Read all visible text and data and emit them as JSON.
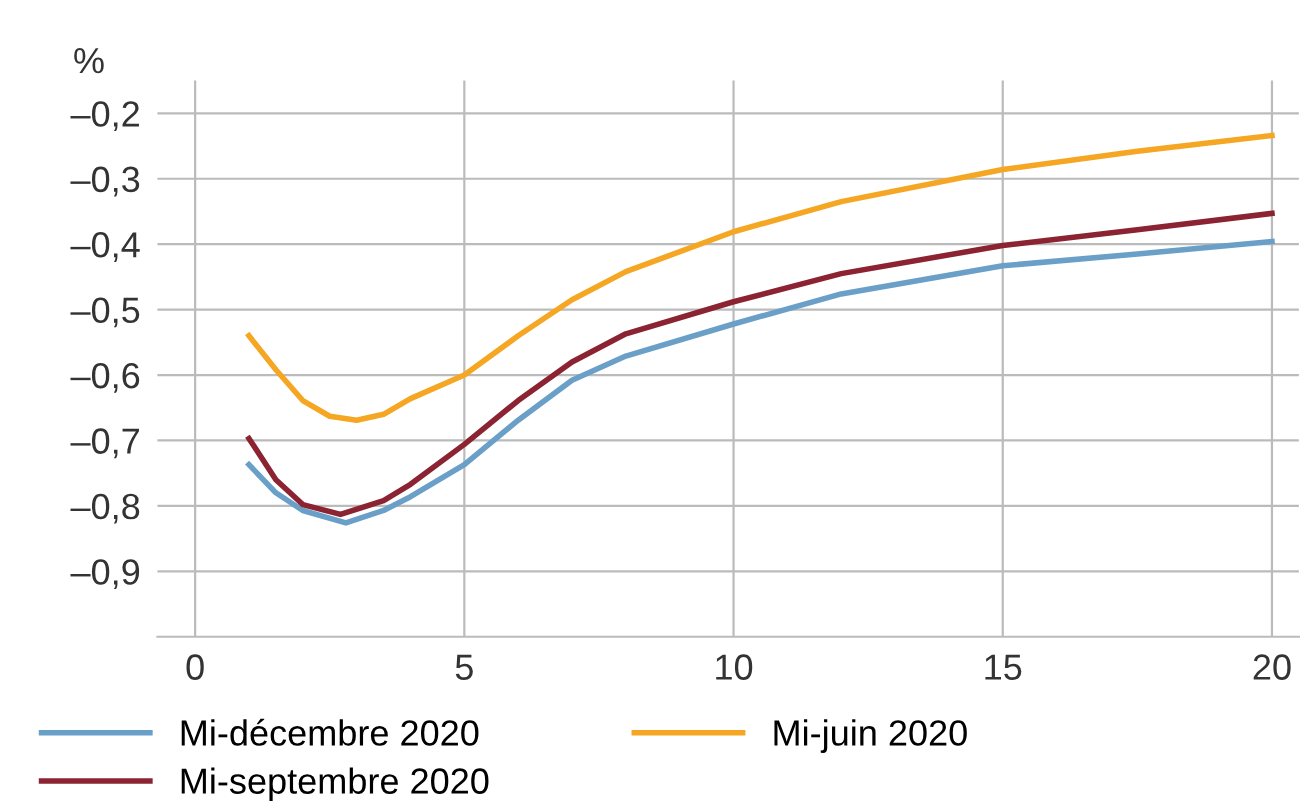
{
  "chart_data": {
    "type": "line",
    "ylabel": "%",
    "series": [
      {
        "name": "Mi-décembre 2020",
        "color": "#6a9fc8",
        "x": [
          1,
          1.5,
          2,
          2.8,
          3.5,
          4,
          5,
          6,
          7,
          8,
          10,
          12,
          15,
          17.5,
          20
        ],
        "values": [
          -0.737,
          -0.78,
          -0.807,
          -0.826,
          -0.807,
          -0.786,
          -0.737,
          -0.669,
          -0.608,
          -0.571,
          -0.522,
          -0.476,
          -0.433,
          -0.415,
          -0.396
        ]
      },
      {
        "name": "Mi-septembre 2020",
        "color": "#8b2332",
        "x": [
          1,
          1.5,
          2,
          2.7,
          3.5,
          4,
          5,
          6,
          7,
          8,
          10,
          12,
          15,
          17.5,
          20
        ],
        "values": [
          -0.697,
          -0.76,
          -0.798,
          -0.813,
          -0.792,
          -0.767,
          -0.706,
          -0.639,
          -0.58,
          -0.537,
          -0.488,
          -0.445,
          -0.402,
          -0.378,
          -0.353
        ]
      },
      {
        "name": "Mi-juin 2020",
        "color": "#f5a623",
        "x": [
          1,
          1.5,
          2,
          2.5,
          3,
          3.5,
          4,
          5,
          6,
          7,
          8,
          10,
          12,
          15,
          17.5,
          20
        ],
        "values": [
          -0.54,
          -0.592,
          -0.639,
          -0.663,
          -0.669,
          -0.66,
          -0.636,
          -0.6,
          -0.54,
          -0.485,
          -0.442,
          -0.381,
          -0.335,
          -0.286,
          -0.258,
          -0.234
        ]
      }
    ],
    "xlim": [
      -0.7,
      20.5
    ],
    "xticks": [
      0,
      5,
      10,
      15,
      20
    ],
    "ylim": [
      -1.0,
      -0.15
    ],
    "yticks": [
      {
        "value": -0.2,
        "label": "–0,2"
      },
      {
        "value": -0.3,
        "label": "–0,3"
      },
      {
        "value": -0.4,
        "label": "–0,4"
      },
      {
        "value": -0.5,
        "label": "–0,5"
      },
      {
        "value": -0.6,
        "label": "–0,6"
      },
      {
        "value": -0.7,
        "label": "–0,7"
      },
      {
        "value": -0.8,
        "label": "–0,8"
      },
      {
        "value": -0.9,
        "label": "–0,9"
      }
    ],
    "grid": true,
    "legend": "bottom",
    "marker": "none",
    "line_style": "solid"
  }
}
